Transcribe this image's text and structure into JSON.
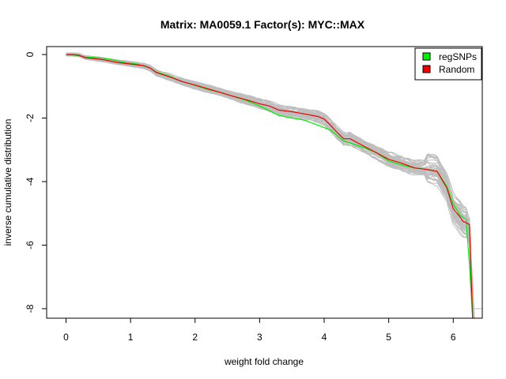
{
  "chart_data": {
    "type": "line",
    "title": "Matrix: MA0059.1 Factor(s): MYC::MAX",
    "xlabel": "weight fold change",
    "ylabel": "inverse cumulative distribution",
    "xlim": [
      -0.3,
      6.45
    ],
    "ylim": [
      -8.3,
      0.25
    ],
    "x_ticks": [
      0,
      1,
      2,
      3,
      4,
      5,
      6
    ],
    "y_ticks": [
      0,
      -2,
      -4,
      -6,
      -8
    ],
    "grid": false,
    "legend_position": "top-right",
    "legend": [
      {
        "label": "regSNPs",
        "color": "#00ee00"
      },
      {
        "label": "Random",
        "color": "#ee0000"
      }
    ],
    "colors": {
      "regSNPs": "#00ee00",
      "Random": "#ee0000",
      "background_random": "#bebebe"
    },
    "series": [
      {
        "name": "regSNPs",
        "x": [
          0,
          0.15,
          0.3,
          0.5,
          0.7,
          0.9,
          1.1,
          1.3,
          1.4,
          1.6,
          1.8,
          2.0,
          2.2,
          2.4,
          2.6,
          2.8,
          3.0,
          3.15,
          3.3,
          3.5,
          3.7,
          3.9,
          4.1,
          4.2,
          4.3,
          4.4,
          4.6,
          4.8,
          5.0,
          5.2,
          5.4,
          5.6,
          5.75,
          5.9,
          6.0,
          6.1,
          6.2,
          6.25,
          6.3
        ],
        "y": [
          0,
          -0.02,
          -0.08,
          -0.1,
          -0.15,
          -0.25,
          -0.3,
          -0.42,
          -0.55,
          -0.68,
          -0.85,
          -0.97,
          -1.1,
          -1.2,
          -1.32,
          -1.45,
          -1.62,
          -1.77,
          -1.92,
          -2.0,
          -2.07,
          -2.22,
          -2.38,
          -2.55,
          -2.72,
          -2.78,
          -2.92,
          -3.08,
          -3.35,
          -3.48,
          -3.57,
          -3.62,
          -3.68,
          -4.15,
          -4.7,
          -5.05,
          -5.2,
          -6.6,
          -8.35
        ]
      },
      {
        "name": "Random",
        "x": [
          0,
          0.1,
          0.2,
          0.3,
          0.4,
          0.6,
          0.8,
          1.0,
          1.2,
          1.3,
          1.4,
          1.6,
          1.8,
          2.0,
          2.2,
          2.4,
          2.6,
          2.8,
          3.0,
          3.15,
          3.3,
          3.5,
          3.7,
          3.9,
          4.0,
          4.1,
          4.2,
          4.3,
          4.4,
          4.6,
          4.8,
          5.0,
          5.2,
          5.4,
          5.6,
          5.75,
          5.9,
          6.0,
          6.1,
          6.15,
          6.25,
          6.3
        ],
        "y": [
          0,
          0,
          -0.02,
          -0.1,
          -0.12,
          -0.17,
          -0.25,
          -0.3,
          -0.35,
          -0.42,
          -0.57,
          -0.7,
          -0.85,
          -0.96,
          -1.08,
          -1.2,
          -1.32,
          -1.43,
          -1.55,
          -1.62,
          -1.75,
          -1.8,
          -1.87,
          -1.95,
          -2.03,
          -2.23,
          -2.45,
          -2.65,
          -2.65,
          -2.87,
          -3.08,
          -3.3,
          -3.42,
          -3.57,
          -3.62,
          -3.68,
          -4.2,
          -4.85,
          -5.1,
          -5.25,
          -5.35,
          -8.4
        ]
      }
    ]
  }
}
